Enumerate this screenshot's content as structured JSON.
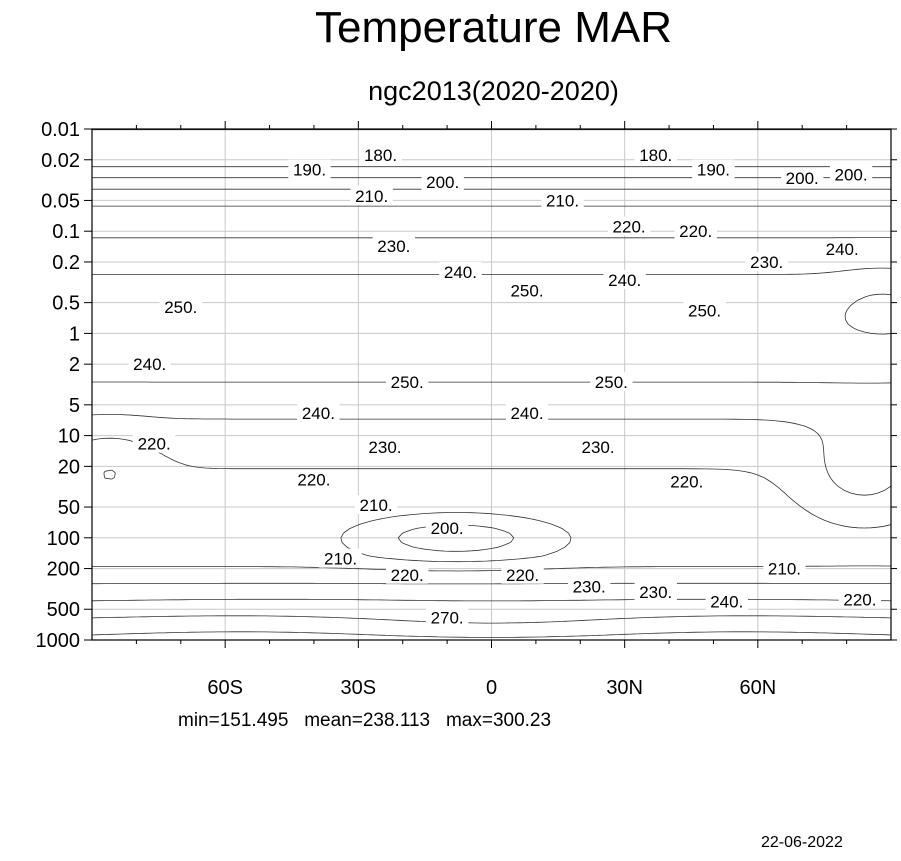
{
  "header": {
    "title": "Temperature MAR",
    "subtitle": "ngc2013(2020-2020)"
  },
  "footer": {
    "stats": "min=151.495   mean=238.113   max=300.23",
    "date": "22-06-2022"
  },
  "chart_data": {
    "type": "contour",
    "title": "Temperature MAR",
    "subtitle": "ngc2013(2020-2020)",
    "xlabel": "",
    "ylabel": "",
    "x_axis": {
      "range": [
        -90,
        90
      ],
      "ticks": [
        -60,
        -30,
        0,
        30,
        60
      ],
      "tick_labels": [
        "60S",
        "30S",
        "0",
        "30N",
        "60N"
      ]
    },
    "y_axis": {
      "scale": "log",
      "reversed": true,
      "range": [
        0.01,
        1000
      ],
      "ticks": [
        0.01,
        0.02,
        0.05,
        0.1,
        0.2,
        0.5,
        1,
        2,
        5,
        10,
        20,
        50,
        100,
        200,
        500,
        1000
      ],
      "tick_labels": [
        "0.01",
        "0.02",
        "0.05",
        "0.1",
        "0.2",
        "0.5",
        "1",
        "2",
        "5",
        "10",
        "20",
        "50",
        "100",
        "200",
        "500",
        "1000"
      ]
    },
    "grid": true,
    "contour_interval": 10,
    "contour_labels": [
      {
        "text": "180.",
        "lat": -25,
        "p": 0.018
      },
      {
        "text": "180.",
        "lat": 37,
        "p": 0.018
      },
      {
        "text": "190.",
        "lat": -41,
        "p": 0.025
      },
      {
        "text": "190.",
        "lat": 50,
        "p": 0.025
      },
      {
        "text": "200.",
        "lat": -11,
        "p": 0.033
      },
      {
        "text": "200.",
        "lat": 70,
        "p": 0.03
      },
      {
        "text": "200.",
        "lat": 81,
        "p": 0.028
      },
      {
        "text": "210.",
        "lat": -27,
        "p": 0.045
      },
      {
        "text": "210.",
        "lat": 16,
        "p": 0.05
      },
      {
        "text": "220.",
        "lat": 31,
        "p": 0.09
      },
      {
        "text": "220.",
        "lat": 46,
        "p": 0.1
      },
      {
        "text": "230.",
        "lat": -22,
        "p": 0.14
      },
      {
        "text": "230.",
        "lat": 62,
        "p": 0.2
      },
      {
        "text": "240.",
        "lat": -7,
        "p": 0.25
      },
      {
        "text": "240.",
        "lat": 30,
        "p": 0.3
      },
      {
        "text": "240.",
        "lat": 79,
        "p": 0.15
      },
      {
        "text": "250.",
        "lat": 8,
        "p": 0.38
      },
      {
        "text": "250.",
        "lat": -70,
        "p": 0.55
      },
      {
        "text": "250.",
        "lat": 48,
        "p": 0.6
      },
      {
        "text": "240.",
        "lat": -77,
        "p": 2
      },
      {
        "text": "250.",
        "lat": -19,
        "p": 3
      },
      {
        "text": "250.",
        "lat": 27,
        "p": 3
      },
      {
        "text": "240.",
        "lat": -39,
        "p": 6
      },
      {
        "text": "240.",
        "lat": 8,
        "p": 6
      },
      {
        "text": "220.",
        "lat": -76,
        "p": 12
      },
      {
        "text": "230.",
        "lat": -24,
        "p": 13
      },
      {
        "text": "230.",
        "lat": 24,
        "p": 13
      },
      {
        "text": "220.",
        "lat": -40,
        "p": 27
      },
      {
        "text": "220.",
        "lat": 44,
        "p": 28
      },
      {
        "text": "210.",
        "lat": -26,
        "p": 48
      },
      {
        "text": "200.",
        "lat": -10,
        "p": 80
      },
      {
        "text": "210.",
        "lat": -34,
        "p": 160
      },
      {
        "text": "210.",
        "lat": 66,
        "p": 200
      },
      {
        "text": "220.",
        "lat": -19,
        "p": 230
      },
      {
        "text": "220.",
        "lat": 7,
        "p": 230
      },
      {
        "text": "230.",
        "lat": 22,
        "p": 300
      },
      {
        "text": "230.",
        "lat": 37,
        "p": 340
      },
      {
        "text": "240.",
        "lat": 53,
        "p": 420
      },
      {
        "text": "220.",
        "lat": 83,
        "p": 400
      },
      {
        "text": "270.",
        "lat": -10,
        "p": 600
      }
    ]
  }
}
